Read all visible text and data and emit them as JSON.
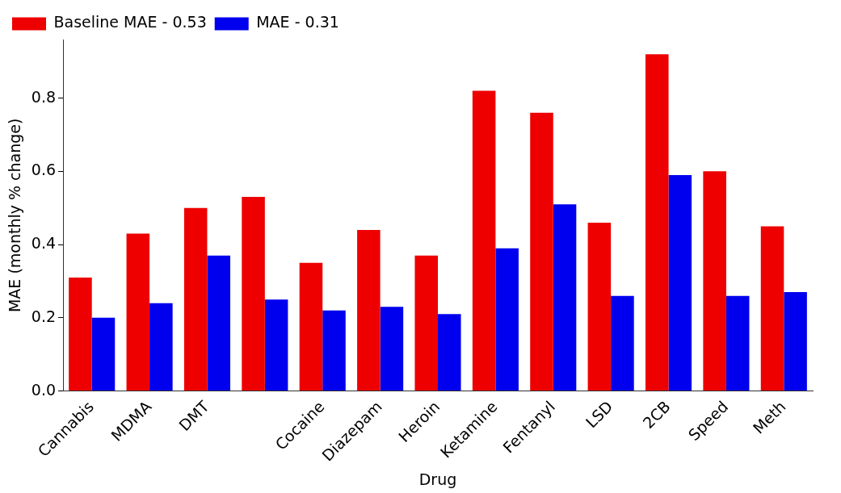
{
  "chart_data": {
    "type": "bar",
    "xlabel": "Drug",
    "ylabel": "MAE (monthly % change)",
    "categories": [
      "Cannabis",
      "MDMA",
      "DMT",
      null,
      "Cocaine",
      "Diazepam",
      "Heroin",
      "Ketamine",
      "Fentanyl",
      "LSD",
      "2CB",
      "Speed",
      "Meth"
    ],
    "series": [
      {
        "name": "Baseline MAE - 0.53",
        "color": "#ee0000",
        "values": [
          0.31,
          0.43,
          0.5,
          0.53,
          0.35,
          0.44,
          0.37,
          0.82,
          0.76,
          0.46,
          0.92,
          0.6,
          0.45
        ]
      },
      {
        "name": "MAE - 0.31",
        "color": "#0000ee",
        "values": [
          0.2,
          0.24,
          0.37,
          0.25,
          0.22,
          0.23,
          0.21,
          0.39,
          0.51,
          0.26,
          0.59,
          0.26,
          0.27
        ]
      }
    ],
    "ylim": [
      0,
      0.96
    ],
    "yticks": [
      {
        "value": 0,
        "label": "0.0"
      },
      {
        "value": 0.2,
        "label": "0.2"
      },
      {
        "value": 0.4,
        "label": "0.4"
      },
      {
        "value": 0.6,
        "label": "0.6"
      },
      {
        "value": 0.8,
        "label": "0.8"
      }
    ],
    "grid": false,
    "legend": "top left"
  }
}
